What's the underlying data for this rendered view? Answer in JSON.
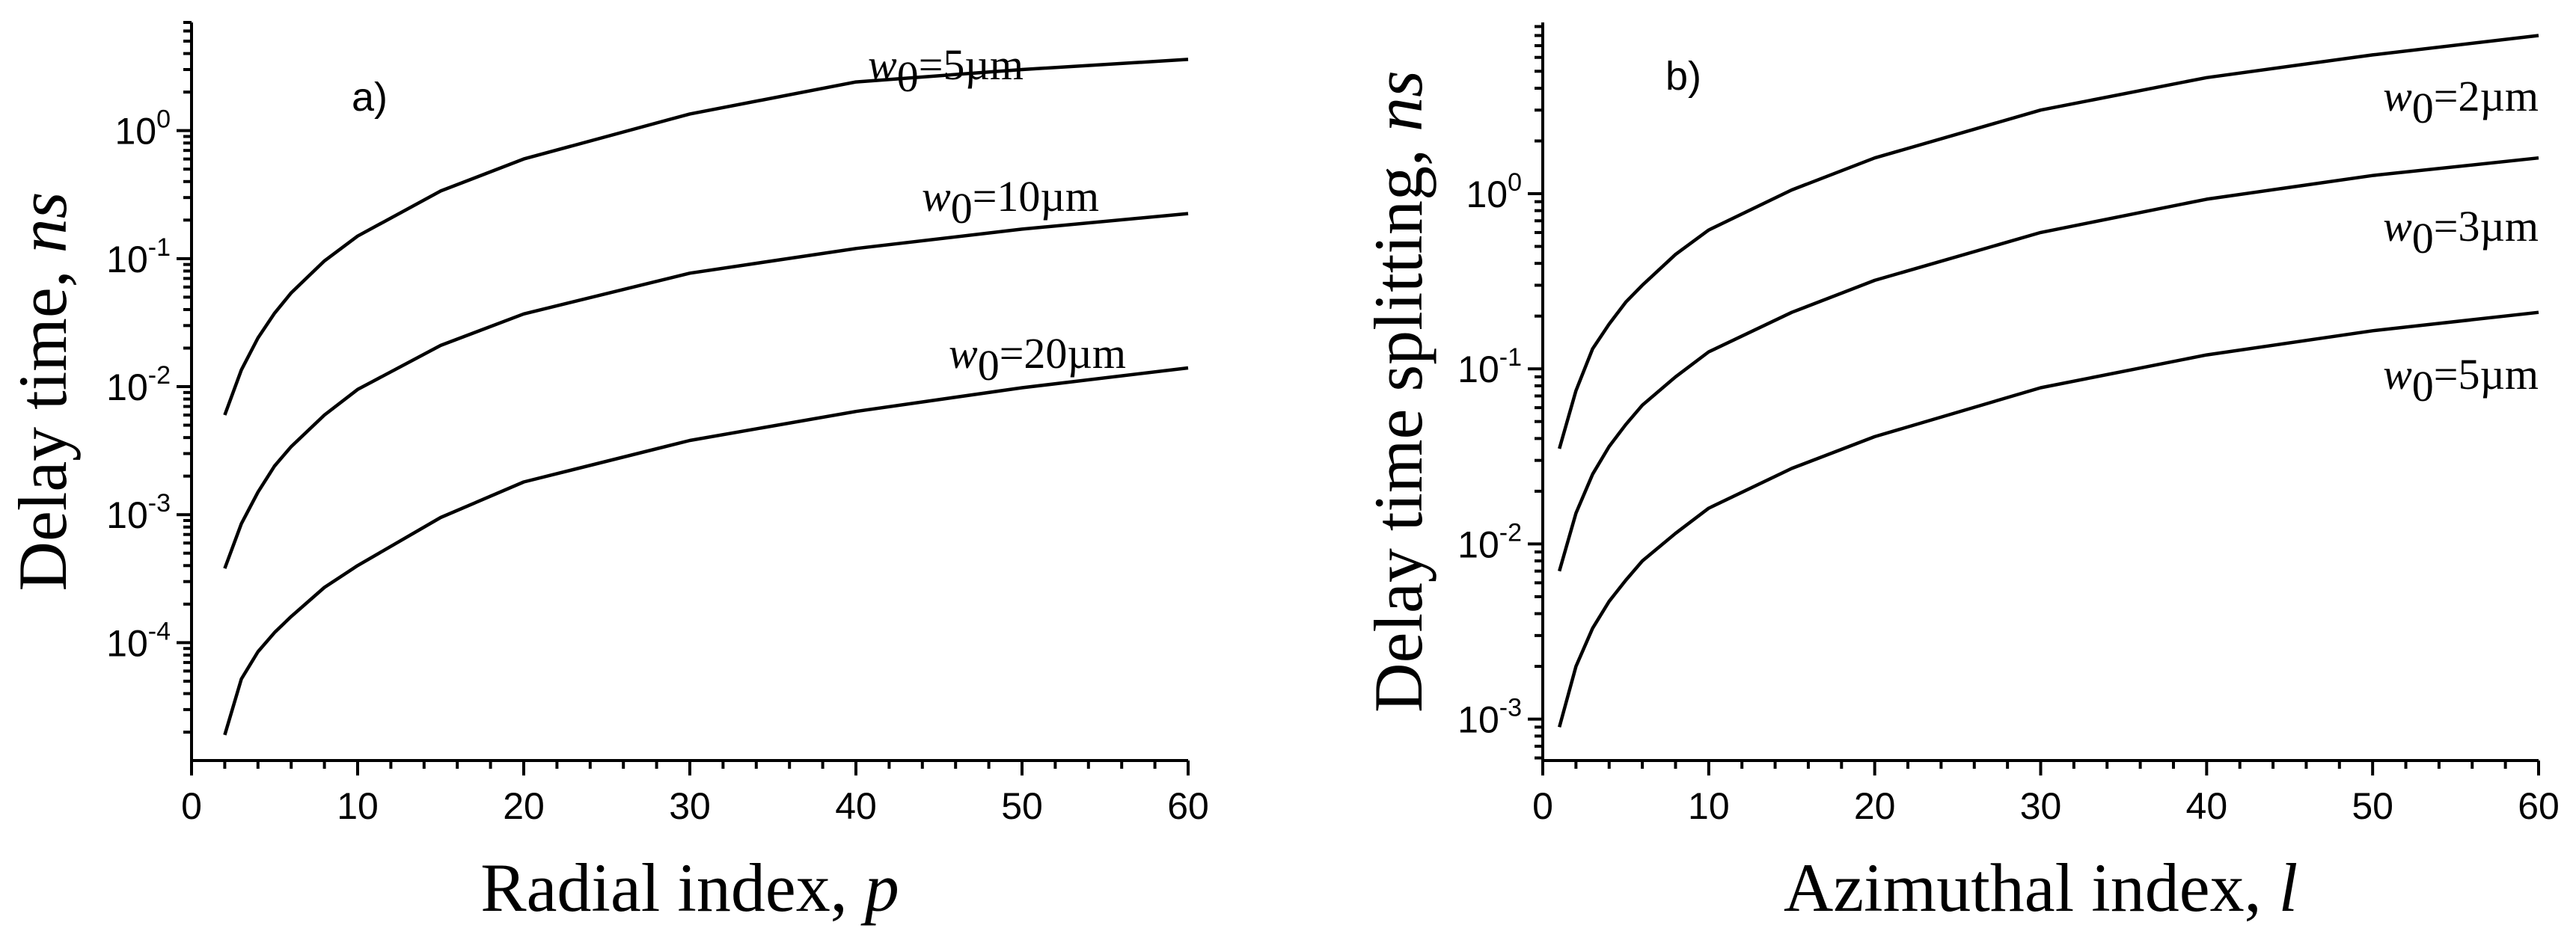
{
  "chart_data": [
    {
      "type": "line",
      "panel_label": "a)",
      "xlabel": "Radial index, ",
      "xlabel_var": "p",
      "ylabel": "Delay time, ",
      "ylabel_var": "ns",
      "yscale": "log",
      "xlim": [
        0,
        60
      ],
      "ylim": [
        1.2e-05,
        7
      ],
      "xticks": [
        0,
        10,
        20,
        30,
        40,
        50,
        60
      ],
      "xtick_labels": [
        "0",
        "10",
        "20",
        "30",
        "40",
        "50",
        "60"
      ],
      "yticks": [
        0.0001,
        0.001,
        0.01,
        0.1,
        1
      ],
      "ytick_labels": [
        {
          "base": "10",
          "exp": "-4"
        },
        {
          "base": "10",
          "exp": "-3"
        },
        {
          "base": "10",
          "exp": "-2"
        },
        {
          "base": "10",
          "exp": "-1"
        },
        {
          "base": "10",
          "exp": "0"
        }
      ],
      "series": [
        {
          "name": "w0=5µm",
          "label_var": "w",
          "label_sub": "0",
          "label_rest": "=5µm",
          "x": [
            2,
            3,
            4,
            5,
            6,
            8,
            10,
            15,
            20,
            30,
            40,
            50,
            60
          ],
          "y": [
            0.006,
            0.0135,
            0.024,
            0.0375,
            0.054,
            0.096,
            0.15,
            0.3375,
            0.6,
            1.35,
            2.4,
            3.0,
            3.6
          ]
        },
        {
          "name": "w0=10µm",
          "label_var": "w",
          "label_sub": "0",
          "label_rest": "=10µm",
          "x": [
            2,
            3,
            4,
            5,
            6,
            8,
            10,
            15,
            20,
            30,
            40,
            50,
            60
          ],
          "y": [
            0.00038,
            0.00085,
            0.0015,
            0.0024,
            0.0034,
            0.006,
            0.0095,
            0.021,
            0.037,
            0.077,
            0.12,
            0.17,
            0.225
          ]
        },
        {
          "name": "w0=20µm",
          "label_var": "w",
          "label_sub": "0",
          "label_rest": "=20µm",
          "x": [
            2,
            3,
            4,
            5,
            6,
            8,
            10,
            15,
            20,
            30,
            40,
            50,
            60
          ],
          "y": [
            1.9e-05,
            5.2e-05,
            8.5e-05,
            0.00012,
            0.00016,
            0.00027,
            0.0004,
            0.00095,
            0.0018,
            0.0038,
            0.0064,
            0.0098,
            0.014
          ]
        }
      ]
    },
    {
      "type": "line",
      "panel_label": "b)",
      "xlabel": "Azimuthal index, ",
      "xlabel_var": "l",
      "ylabel": "Delay time splitting, ",
      "ylabel_var": "ns",
      "yscale": "log",
      "xlim": [
        0,
        60
      ],
      "ylim": [
        0.00058,
        9.5
      ],
      "xticks": [
        0,
        10,
        20,
        30,
        40,
        50,
        60
      ],
      "xtick_labels": [
        "0",
        "10",
        "20",
        "30",
        "40",
        "50",
        "60"
      ],
      "yticks": [
        0.001,
        0.01,
        0.1,
        1
      ],
      "ytick_labels": [
        {
          "base": "10",
          "exp": "-3"
        },
        {
          "base": "10",
          "exp": "-2"
        },
        {
          "base": "10",
          "exp": "-1"
        },
        {
          "base": "10",
          "exp": "0"
        }
      ],
      "series": [
        {
          "name": "w0=2µm",
          "label_var": "w",
          "label_sub": "0",
          "label_rest": "=2µm",
          "x": [
            1,
            2,
            3,
            4,
            5,
            6,
            8,
            10,
            15,
            20,
            30,
            40,
            50,
            60
          ],
          "y": [
            0.035,
            0.075,
            0.13,
            0.18,
            0.24,
            0.3,
            0.45,
            0.62,
            1.05,
            1.6,
            3.0,
            4.6,
            6.2,
            8.0
          ]
        },
        {
          "name": "w0=3µm",
          "label_var": "w",
          "label_sub": "0",
          "label_rest": "=3µm",
          "x": [
            1,
            2,
            3,
            4,
            5,
            6,
            8,
            10,
            15,
            20,
            30,
            40,
            50,
            60
          ],
          "y": [
            0.007,
            0.015,
            0.025,
            0.036,
            0.048,
            0.062,
            0.09,
            0.125,
            0.21,
            0.32,
            0.6,
            0.93,
            1.27,
            1.6
          ]
        },
        {
          "name": "w0=5µm",
          "label_var": "w",
          "label_sub": "0",
          "label_rest": "=5µm",
          "x": [
            1,
            2,
            3,
            4,
            5,
            6,
            8,
            10,
            15,
            20,
            30,
            40,
            50,
            60
          ],
          "y": [
            0.0009,
            0.002,
            0.0033,
            0.0047,
            0.0062,
            0.008,
            0.0115,
            0.016,
            0.027,
            0.041,
            0.078,
            0.12,
            0.165,
            0.21
          ]
        }
      ]
    }
  ]
}
